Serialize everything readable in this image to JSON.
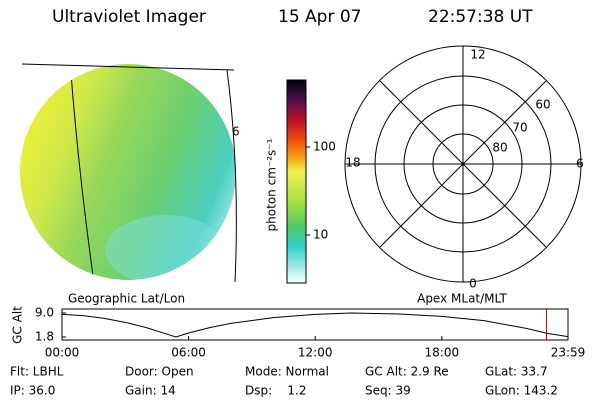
{
  "header": {
    "instrument": "Ultraviolet Imager",
    "date": "15 Apr 07",
    "time": "22:57:38 UT"
  },
  "colorbar": {
    "label": "photon cm⁻²s⁻¹",
    "ticks": [
      "100",
      "10"
    ]
  },
  "image_caption": "Geographic Lat/Lon",
  "polar": {
    "caption": "Apex MLat/MLT",
    "mlt_labels": [
      "12",
      "6",
      "0",
      "18"
    ],
    "lat_labels": [
      "60",
      "70",
      "80"
    ]
  },
  "altitude_plot": {
    "ylabel": "GC Alt",
    "x": [
      0,
      1,
      2,
      3,
      4,
      5,
      5.4,
      6,
      7,
      8,
      10,
      12,
      13.7,
      16,
      18,
      20,
      22,
      23,
      23.98
    ],
    "values": [
      8.6,
      8.2,
      7.4,
      6.2,
      4.6,
      2.6,
      1.8,
      3.0,
      4.6,
      5.9,
      7.6,
      8.6,
      9.0,
      8.7,
      8.0,
      6.7,
      4.4,
      2.9,
      1.9
    ],
    "xlim": [
      0,
      23.98
    ],
    "ylim": [
      1.8,
      9.0
    ],
    "yticks": [
      {
        "value": 9,
        "label": "9.0"
      },
      {
        "value": 1.8,
        "label": "1.8"
      }
    ],
    "xticks": [
      {
        "value": 0,
        "label": "00:00"
      },
      {
        "value": 6,
        "label": "06:00"
      },
      {
        "value": 12,
        "label": "12:00"
      },
      {
        "value": 18,
        "label": "18:00"
      },
      {
        "value": 23.98,
        "label": "23:59"
      }
    ],
    "marker_x": 22.96,
    "marker_color": "#cc0000"
  },
  "info": {
    "rows": [
      [
        "Flt: LBHL",
        "Door: Open",
        "Mode: Normal",
        "GC Alt: 2.9 Re",
        "GLat: 33.7"
      ],
      [
        "IP: 36.0",
        "Gain: 14",
        "Dsp:    1.2",
        "Seq: 39",
        "GLon: 143.2"
      ]
    ]
  }
}
